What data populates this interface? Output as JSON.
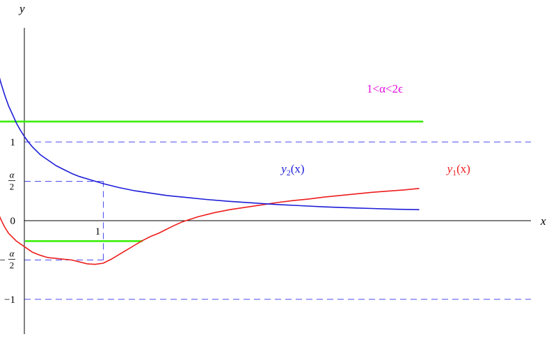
{
  "chart_data": {
    "type": "line",
    "title": "",
    "xlabel": "x",
    "ylabel": "y",
    "xlim": [
      -0.9,
      5.05
    ],
    "ylim": [
      -1.5,
      2.5
    ],
    "grid": false,
    "yticks": [
      {
        "value": 1,
        "label": "1"
      },
      {
        "value": 0.5,
        "label_num": "α",
        "label_den": "2",
        "neg": false
      },
      {
        "value": 0,
        "label": "0"
      },
      {
        "value": -0.5,
        "label_num": "α",
        "label_den": "2",
        "neg": true
      },
      {
        "value": -1,
        "label": "−1"
      }
    ],
    "xtick_annotation": {
      "value": 1,
      "label": "1"
    },
    "annotation": "1<α<2ϵ",
    "colors": {
      "y1": "#ee1c1c",
      "y2": "#1c1cd8",
      "levels": "#33ee00",
      "annotation": "#e010e0",
      "reference": "#4a4aee",
      "axis": "#000000"
    },
    "series": [
      {
        "name_base": "y",
        "name_sub": "1",
        "name_tail": "(x)",
        "color": "#ee1c1c",
        "x": [
          -0.75,
          -0.7,
          -0.65,
          -0.6,
          -0.55,
          -0.5,
          -0.45,
          -0.4,
          -0.35,
          -0.3,
          -0.25,
          -0.2,
          -0.1,
          0,
          0.1,
          0.2,
          0.3,
          0.4,
          0.5,
          0.6,
          0.7,
          0.8,
          0.9,
          1.0,
          1.1,
          1.2,
          1.3,
          1.4,
          1.5,
          1.6,
          1.7,
          1.8,
          1.9,
          2.0,
          2.2,
          2.4,
          2.6,
          2.8,
          3.0,
          3.2,
          3.4,
          3.6,
          3.8,
          4.0,
          4.2,
          4.4,
          4.6,
          4.8,
          5.0
        ],
        "y": [
          2.5,
          1.98,
          1.59,
          1.22,
          0.92,
          0.68,
          0.47,
          0.29,
          0.14,
          0.02,
          -0.08,
          -0.16,
          -0.26,
          -0.33,
          -0.4,
          -0.44,
          -0.47,
          -0.48,
          -0.49,
          -0.5,
          -0.525,
          -0.55,
          -0.555,
          -0.54,
          -0.49,
          -0.43,
          -0.37,
          -0.31,
          -0.25,
          -0.2,
          -0.16,
          -0.11,
          -0.06,
          -0.015,
          0.05,
          0.1,
          0.14,
          0.17,
          0.2,
          0.23,
          0.255,
          0.275,
          0.3,
          0.32,
          0.34,
          0.36,
          0.375,
          0.39,
          0.41
        ]
      },
      {
        "name_base": "y",
        "name_sub": "2",
        "name_tail": "(x)",
        "color": "#1c1cd8",
        "x": [
          -0.45,
          -0.4,
          -0.35,
          -0.3,
          -0.25,
          -0.2,
          -0.15,
          -0.1,
          -0.05,
          0,
          0.05,
          0.1,
          0.2,
          0.3,
          0.4,
          0.5,
          0.6,
          0.7,
          0.8,
          0.9,
          1.0,
          1.2,
          1.4,
          1.6,
          1.8,
          2.0,
          2.3,
          2.6,
          2.9,
          3.2,
          3.5,
          3.8,
          4.1,
          4.4,
          4.7,
          5.0
        ],
        "y": [
          2.5,
          2.2,
          1.95,
          1.76,
          1.6,
          1.46,
          1.35,
          1.24,
          1.15,
          1.07,
          1.0,
          0.94,
          0.84,
          0.77,
          0.7,
          0.65,
          0.6,
          0.56,
          0.53,
          0.5,
          0.47,
          0.42,
          0.38,
          0.35,
          0.32,
          0.3,
          0.27,
          0.245,
          0.225,
          0.205,
          0.19,
          0.175,
          0.165,
          0.155,
          0.145,
          0.14
        ]
      }
    ],
    "horizontal_levels": [
      {
        "y": 1.26,
        "x_start": -0.68,
        "x_end": 5.05
      },
      {
        "y": -0.26,
        "x_start": 0.01,
        "x_end": 1.5
      }
    ],
    "reference_lines": {
      "horizontal_full": [
        1,
        -1
      ],
      "to_curve": [
        {
          "y": 0.5,
          "x_end": 1.0
        },
        {
          "y": -0.5,
          "x_end": 1.0
        }
      ],
      "vertical": {
        "x": 1.0,
        "y_from": -0.5,
        "y_to": 0.5
      }
    }
  }
}
